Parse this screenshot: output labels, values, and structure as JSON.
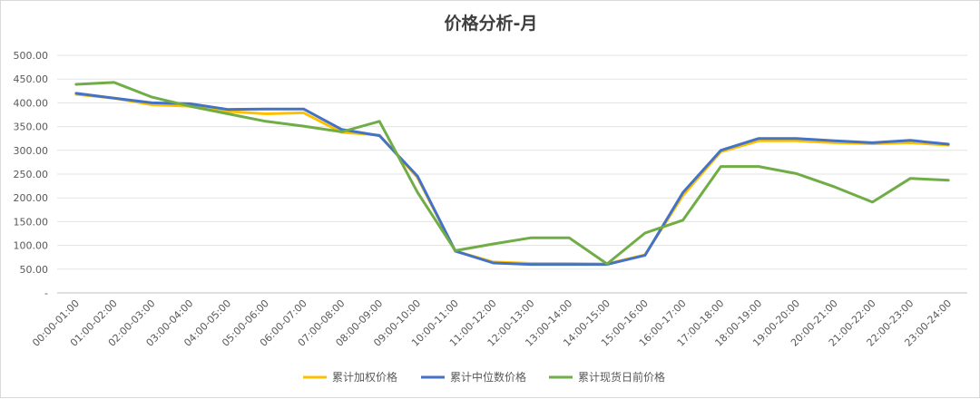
{
  "chart_data": {
    "type": "line",
    "title": "价格分析-月",
    "xlabel": "",
    "ylabel": "",
    "ylim": [
      0,
      500
    ],
    "yticks": [
      0,
      50,
      100,
      150,
      200,
      250,
      300,
      350,
      400,
      450,
      500
    ],
    "ytick_labels": [
      "-",
      "50.00",
      "100.00",
      "150.00",
      "200.00",
      "250.00",
      "300.00",
      "350.00",
      "400.00",
      "450.00",
      "500.00"
    ],
    "grid": true,
    "legend_position": "bottom",
    "categories": [
      "00:00-01:00",
      "01:00-02:00",
      "02:00-03:00",
      "03:00-04:00",
      "04:00-05:00",
      "05:00-06:00",
      "06:00-07:00",
      "07:00-08:00",
      "08:00-09:00",
      "09:00-10:00",
      "10:00-11:00",
      "11:00-12:00",
      "12:00-13:00",
      "13:00-14:00",
      "14:00-15:00",
      "15:00-16:00",
      "16:00-17:00",
      "17:00-18:00",
      "18:00-19:00",
      "19:00-20:00",
      "20:00-21:00",
      "21:00-22:00",
      "22:00-23:00",
      "23:00-24:00"
    ],
    "series": [
      {
        "name": "累计加权价格",
        "color": "#FFC000",
        "values": [
          418,
          410,
          396,
          393,
          382,
          377,
          379,
          338,
          332,
          243,
          88,
          65,
          62,
          62,
          61,
          80,
          205,
          297,
          320,
          320,
          316,
          314,
          316,
          311
        ]
      },
      {
        "name": "累计中位数价格",
        "color": "#4472C4",
        "values": [
          420,
          410,
          400,
          398,
          386,
          387,
          387,
          344,
          331,
          246,
          88,
          63,
          60,
          60,
          60,
          79,
          211,
          300,
          325,
          325,
          320,
          316,
          321,
          313
        ]
      },
      {
        "name": "累计现货日前价格",
        "color": "#70AD47",
        "values": [
          439,
          443,
          412,
          393,
          377,
          361,
          351,
          339,
          361,
          212,
          89,
          103,
          116,
          116,
          61,
          126,
          153,
          266,
          266,
          251,
          223,
          191,
          241,
          237
        ]
      }
    ]
  }
}
